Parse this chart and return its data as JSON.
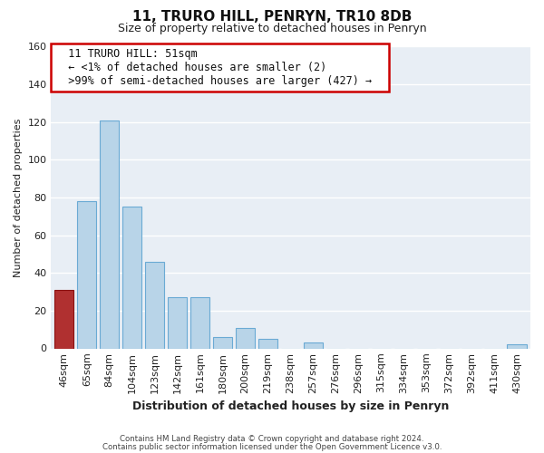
{
  "title": "11, TRURO HILL, PENRYN, TR10 8DB",
  "subtitle": "Size of property relative to detached houses in Penryn",
  "xlabel": "Distribution of detached houses by size in Penryn",
  "ylabel": "Number of detached properties",
  "categories": [
    "46sqm",
    "65sqm",
    "84sqm",
    "104sqm",
    "123sqm",
    "142sqm",
    "161sqm",
    "180sqm",
    "200sqm",
    "219sqm",
    "238sqm",
    "257sqm",
    "276sqm",
    "296sqm",
    "315sqm",
    "334sqm",
    "353sqm",
    "372sqm",
    "392sqm",
    "411sqm",
    "430sqm"
  ],
  "values": [
    31,
    78,
    121,
    75,
    46,
    27,
    27,
    6,
    11,
    5,
    0,
    3,
    0,
    0,
    0,
    0,
    0,
    0,
    0,
    0,
    2
  ],
  "highlight_index": 0,
  "bar_color": "#b8d4e8",
  "bar_edge_color": "#6aaad4",
  "highlight_bar_color": "#b03030",
  "highlight_edge_color": "#8b1010",
  "ylim": [
    0,
    160
  ],
  "yticks": [
    0,
    20,
    40,
    60,
    80,
    100,
    120,
    140,
    160
  ],
  "annotation_title": "11 TRURO HILL: 51sqm",
  "annotation_line1": "← <1% of detached houses are smaller (2)",
  "annotation_line2": ">99% of semi-detached houses are larger (427) →",
  "footer1": "Contains HM Land Registry data © Crown copyright and database right 2024.",
  "footer2": "Contains public sector information licensed under the Open Government Licence v3.0.",
  "fig_bg_color": "#ffffff",
  "axes_bg_color": "#e8eef5",
  "grid_color": "#ffffff",
  "annotation_box_color": "#ffffff",
  "annotation_border_color": "#cc0000",
  "title_fontsize": 11,
  "subtitle_fontsize": 9,
  "xlabel_fontsize": 9,
  "ylabel_fontsize": 8,
  "tick_fontsize": 8
}
